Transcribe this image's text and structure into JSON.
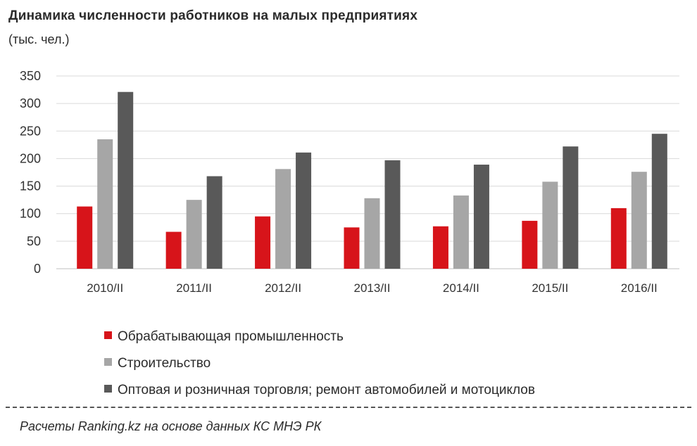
{
  "title": "Динамика  численности  работников  на малых предприятиях",
  "subtitle": "(тыс. чел.)",
  "source": "Расчеты Ranking.kz на основе данных КС МНЭ РК",
  "colors": {
    "manufacturing": "#d7141a",
    "construction": "#a6a6a6",
    "trade": "#595959",
    "grid": "#d9d9d9",
    "axis": "#bfbfbf"
  },
  "chart_data": {
    "type": "bar",
    "categories": [
      "2010/II",
      "2011/II",
      "2012/II",
      "2013/II",
      "2014/II",
      "2015/II",
      "2016/II"
    ],
    "series": [
      {
        "name": "Обрабатывающая промышленность",
        "color": "#d7141a",
        "values": [
          113,
          67,
          95,
          75,
          77,
          87,
          110
        ]
      },
      {
        "name": "Строительство",
        "color": "#a6a6a6",
        "values": [
          235,
          125,
          181,
          128,
          133,
          158,
          176
        ]
      },
      {
        "name": "Оптовая и розничная торговля; ремонт автомобилей и мотоциклов",
        "color": "#595959",
        "values": [
          321,
          168,
          211,
          197,
          189,
          222,
          245
        ]
      }
    ],
    "ylim": [
      0,
      350
    ],
    "yticks": [
      0,
      50,
      100,
      150,
      200,
      250,
      300,
      350
    ],
    "grid": true,
    "legend_position": "bottom"
  }
}
